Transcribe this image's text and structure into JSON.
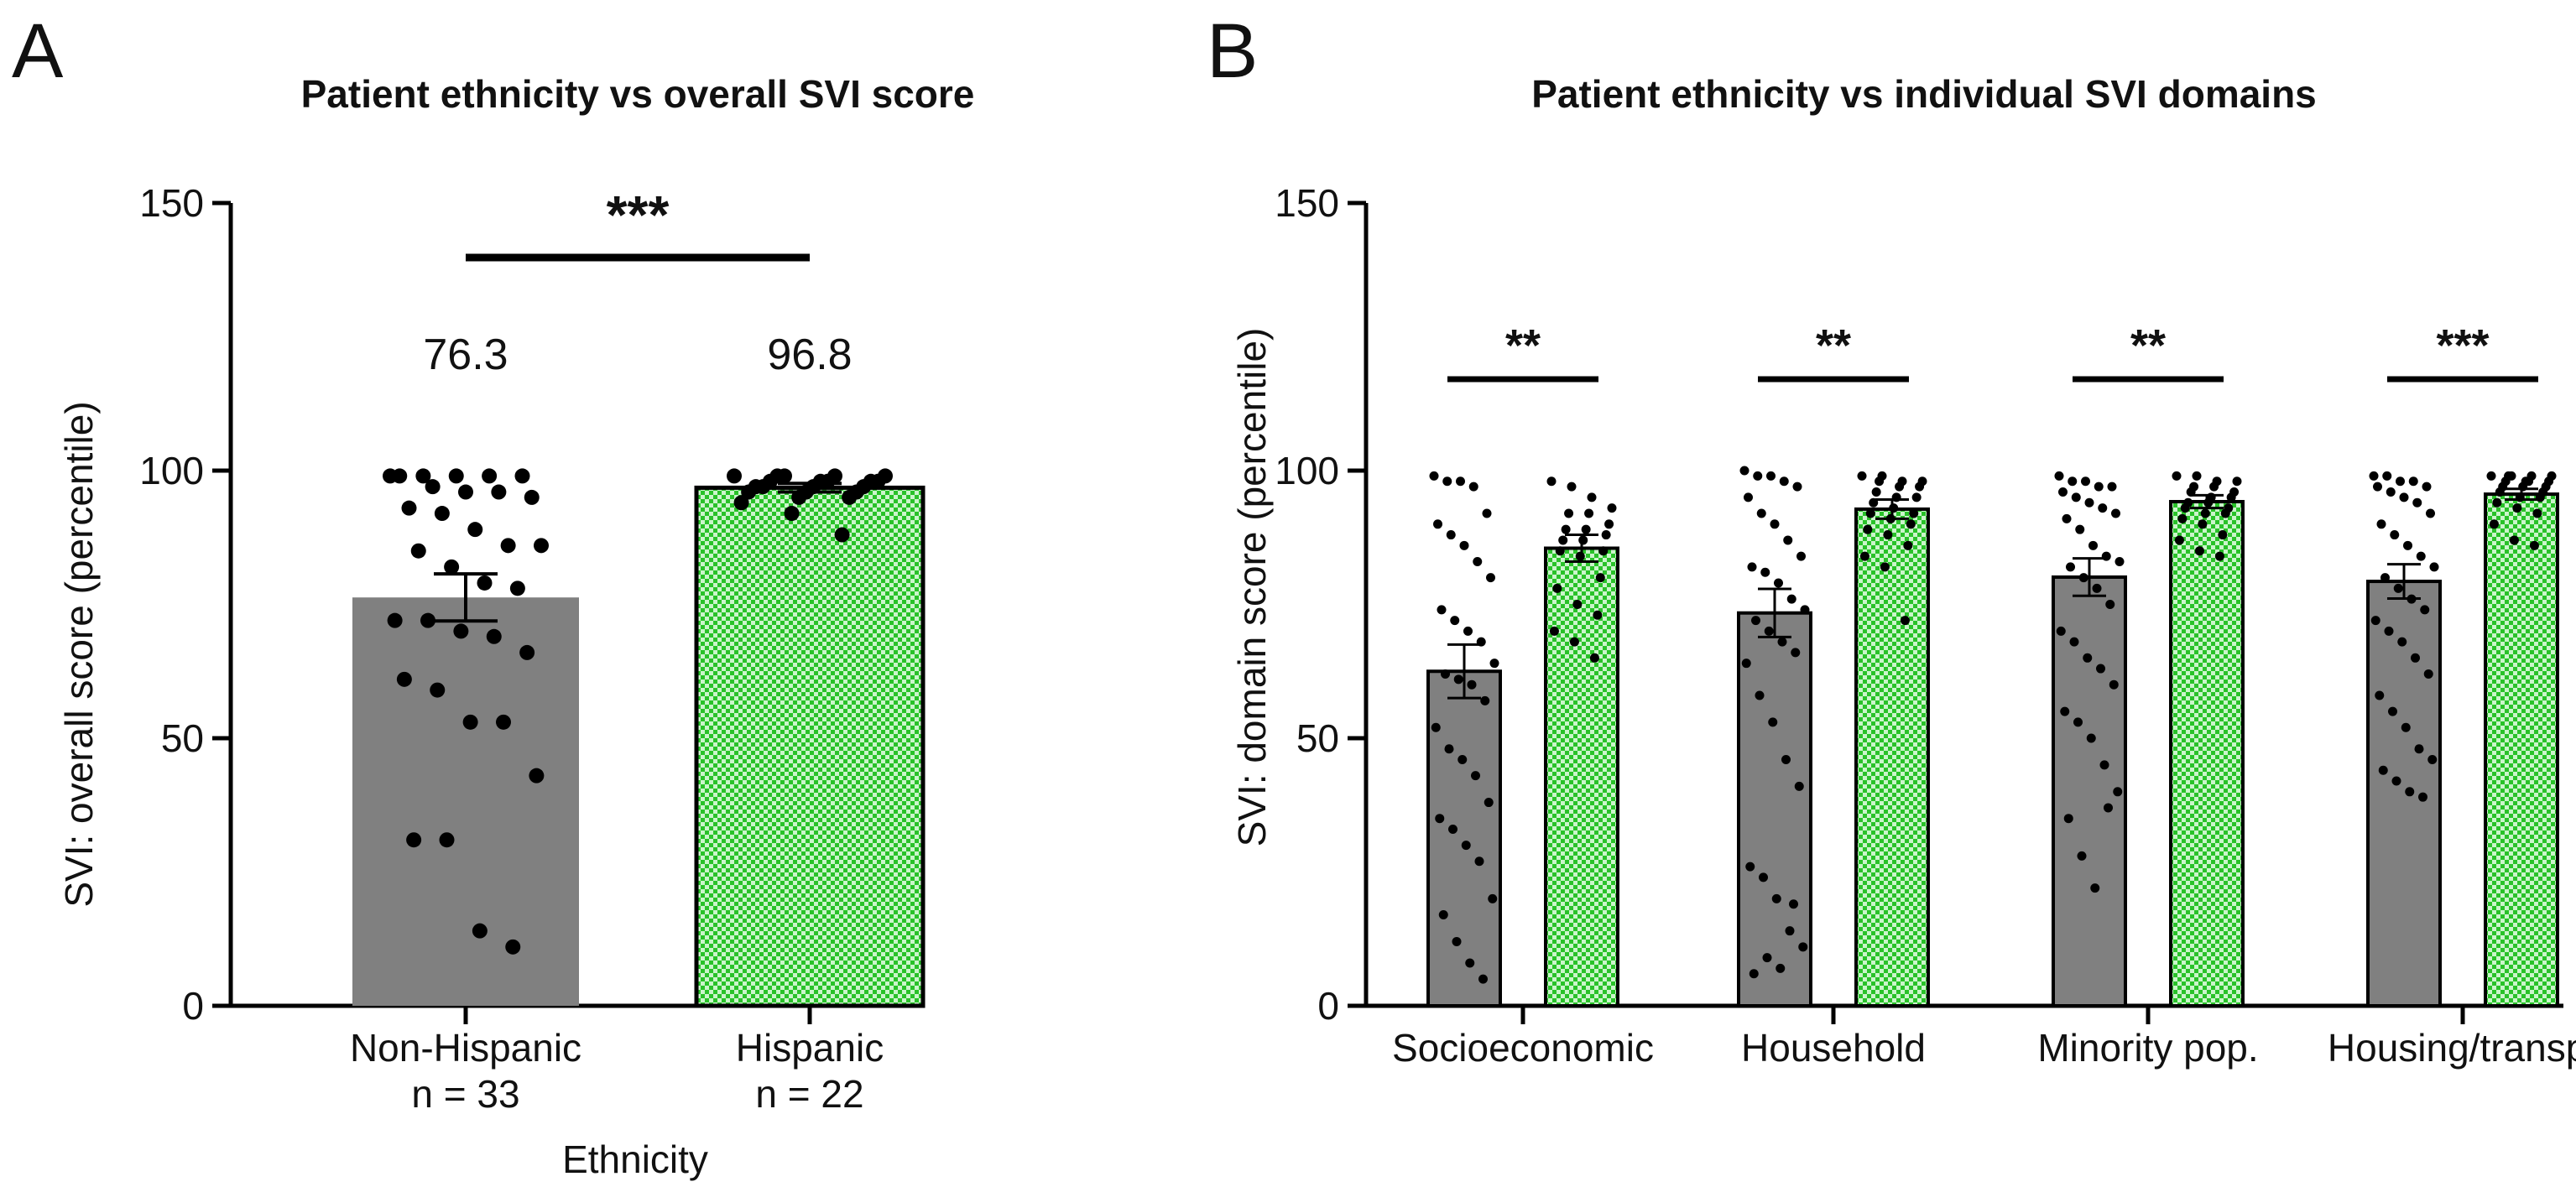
{
  "colors": {
    "non_hispanic": "#808080",
    "hispanic": "#29c229",
    "hispanic_light": "#cbf5cb",
    "axis": "#000000",
    "points": "#000000"
  },
  "chart_data": [
    {
      "panel": "A",
      "type": "bar",
      "title": "Patient ethnicity vs overall SVI score",
      "xlabel": "Ethnicity",
      "ylabel": "SVI: overall score (percentile)",
      "ylim": [
        0,
        150
      ],
      "yticks": [
        0,
        50,
        100,
        150
      ],
      "grid": false,
      "categories": [
        {
          "name": "Non-Hispanic",
          "n_label": "n = 33",
          "mean": 76.3,
          "mean_label": "76.3",
          "sem": 4.4,
          "fill": "solid"
        },
        {
          "name": "Hispanic",
          "n_label": "n = 22",
          "mean": 96.8,
          "mean_label": "96.8",
          "sem": 0.8,
          "fill": "checker"
        }
      ],
      "points": [
        [
          99,
          99,
          99,
          99,
          99,
          99,
          97,
          96,
          96,
          95,
          93,
          92,
          89,
          86,
          86,
          85,
          82,
          79,
          78,
          72,
          72,
          70,
          69,
          66,
          61,
          59,
          53,
          53,
          43,
          31,
          31,
          14,
          11
        ],
        [
          99,
          99,
          99,
          99,
          99,
          98,
          98,
          98,
          98,
          98,
          97,
          97,
          97,
          97,
          96,
          96,
          96,
          95,
          95,
          94,
          92,
          88
        ]
      ],
      "significance": [
        {
          "from": 0,
          "to": 1,
          "label": "***",
          "y": 140
        }
      ]
    },
    {
      "panel": "B",
      "type": "bar",
      "title": "Patient ethnicity vs individual SVI domains",
      "xlabel": "",
      "ylabel": "SVI: domain score (percentile)",
      "ylim": [
        0,
        150
      ],
      "yticks": [
        0,
        50,
        100,
        150
      ],
      "grid": false,
      "categories": [
        "Socioeconomic",
        "Household",
        "Minority pop.",
        "Housing/transp."
      ],
      "series": [
        {
          "name": "Non-Hispanic",
          "fill": "solid",
          "values": [
            62.5,
            73.4,
            80.1,
            79.3
          ],
          "sem": [
            5.0,
            4.5,
            3.5,
            3.2
          ]
        },
        {
          "name": "Hispanic",
          "fill": "checker",
          "values": [
            85.5,
            92.8,
            94.2,
            95.6
          ],
          "sem": [
            2.5,
            1.8,
            1.2,
            1.0
          ]
        }
      ],
      "points": [
        [
          [
            99,
            98,
            98,
            97,
            92,
            90,
            88,
            86,
            83,
            80,
            74,
            72,
            70,
            68,
            64,
            62,
            61,
            60,
            57,
            52,
            48,
            46,
            43,
            38,
            35,
            33,
            30,
            27,
            20,
            17,
            12,
            8,
            5
          ],
          [
            98,
            97,
            95,
            93,
            92,
            92,
            90,
            89,
            89,
            88,
            87,
            87,
            85,
            85,
            84,
            80,
            78,
            75,
            73,
            70,
            68,
            65
          ]
        ],
        [
          [
            100,
            99,
            99,
            98,
            97,
            95,
            92,
            90,
            87,
            84,
            82,
            81,
            79,
            76,
            74,
            72,
            70,
            68,
            66,
            64,
            58,
            53,
            46,
            41,
            26,
            24,
            20,
            14,
            11,
            6,
            9,
            7,
            19
          ],
          [
            99,
            99,
            98,
            98,
            98,
            97,
            97,
            96,
            95,
            95,
            94,
            93,
            92,
            92,
            91,
            90,
            89,
            88,
            86,
            84,
            82,
            72
          ]
        ],
        [
          [
            99,
            98,
            98,
            97,
            97,
            96,
            95,
            94,
            93,
            92,
            91,
            89,
            86,
            84,
            83,
            82,
            80,
            78,
            75,
            70,
            68,
            65,
            63,
            60,
            55,
            53,
            50,
            45,
            40,
            35,
            28,
            22,
            37
          ],
          [
            99,
            99,
            98,
            98,
            97,
            97,
            96,
            96,
            95,
            95,
            94,
            94,
            93,
            93,
            92,
            92,
            91,
            90,
            88,
            87,
            85,
            84
          ]
        ],
        [
          [
            99,
            99,
            98,
            98,
            97,
            97,
            96,
            95,
            94,
            92,
            90,
            88,
            86,
            84,
            82,
            80,
            78,
            76,
            74,
            72,
            70,
            68,
            65,
            62,
            58,
            55,
            52,
            48,
            46,
            44,
            42,
            40,
            39
          ],
          [
            99,
            99,
            99,
            99,
            99,
            98,
            98,
            98,
            98,
            97,
            97,
            97,
            96,
            96,
            95,
            95,
            94,
            93,
            92,
            90,
            87,
            86
          ]
        ]
      ],
      "significance": [
        {
          "category": 0,
          "label": "**",
          "y": 116
        },
        {
          "category": 1,
          "label": "**",
          "y": 116
        },
        {
          "category": 2,
          "label": "**",
          "y": 116
        },
        {
          "category": 3,
          "label": "***",
          "y": 116
        }
      ]
    }
  ]
}
